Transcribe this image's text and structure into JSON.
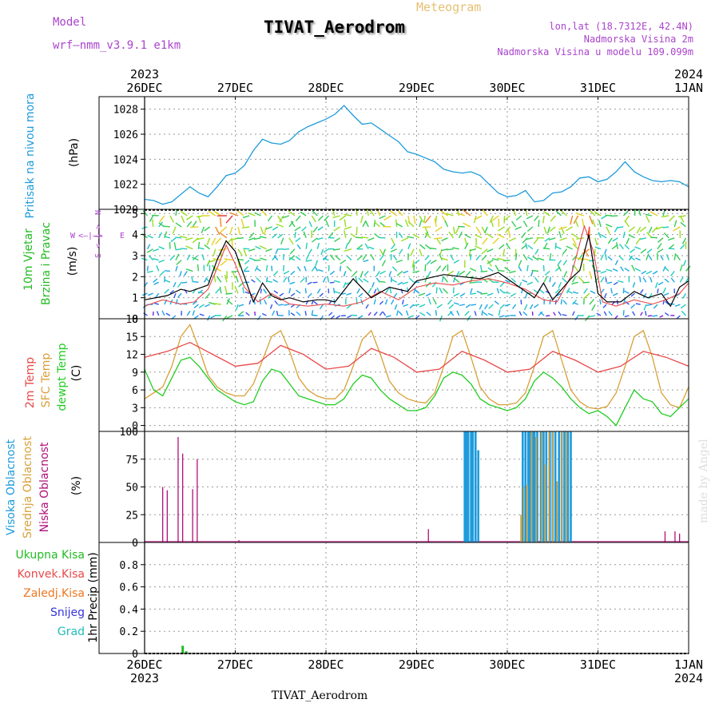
{
  "header": {
    "model_label": "Model",
    "model_name": "wrf—nmm_v3.9.1  e1km",
    "product": "Meteogram",
    "station": "TIVAT_Aerodrom",
    "lonlat": "lon,lat (18.7312E, 42.4N)",
    "elevation": "Nadmorska Visina 2m",
    "model_elevation": "Nadmorska Visina u modelu 109.099m",
    "footer_station": "TIVAT_Aerodrom",
    "credit": "made by Angel"
  },
  "colors": {
    "pressure": "#1e9bdc",
    "wind_label": "#22bb22",
    "temp2m": "#e84848",
    "sfc_temp": "#d8a038",
    "dewpt": "#22cc22",
    "cloud_high": "#1e9bdc",
    "cloud_mid": "#d8a038",
    "cloud_low": "#b0107a",
    "precip_total": "#22bb22",
    "precip_conv": "#e84848",
    "precip_frozen": "#ee7722",
    "precip_snow": "#3333dd",
    "precip_grad": "#22bbbb",
    "compass": "#aa44cc",
    "model_title": "#aa44cc",
    "product_title": "#e6c072"
  },
  "time_axis": {
    "top_year_left": "2023",
    "top_year_right": "2024",
    "bottom_year_left": "2023",
    "bottom_year_right": "2024",
    "ticks": [
      "26DEC",
      "27DEC",
      "28DEC",
      "29DEC",
      "30DEC",
      "31DEC",
      "1JAN"
    ]
  },
  "chart_data": [
    {
      "panel": "pressure",
      "type": "line",
      "ylabel": "Pritisak na nivou mora",
      "unit": "(hPa)",
      "ylim": [
        1020,
        1029
      ],
      "yticks": [
        1020,
        1022,
        1024,
        1026,
        1028
      ],
      "grid": true,
      "series": [
        {
          "x": [
            0,
            0.1,
            0.2,
            0.3,
            0.4,
            0.5,
            0.6,
            0.7,
            0.8,
            0.9,
            1,
            1.1,
            1.2,
            1.3,
            1.4,
            1.5,
            1.6,
            1.7,
            1.8,
            1.9,
            2,
            2.1,
            2.2,
            2.3,
            2.4,
            2.5,
            2.6,
            2.7,
            2.8,
            2.9,
            3,
            3.1,
            3.2,
            3.3,
            3.4,
            3.5,
            3.6,
            3.7,
            3.8,
            3.9,
            4,
            4.1,
            4.2,
            4.3,
            4.4,
            4.5,
            4.6,
            4.7,
            4.8,
            4.9,
            5,
            5.1,
            5.2,
            5.3,
            5.4,
            5.5,
            5.6,
            5.7,
            5.8,
            5.9,
            6
          ],
          "values": [
            1020.8,
            1020.7,
            1020.4,
            1020.6,
            1021.2,
            1021.8,
            1021.3,
            1021.0,
            1021.8,
            1022.7,
            1022.9,
            1023.5,
            1024.7,
            1025.6,
            1025.3,
            1025.2,
            1025.5,
            1026.2,
            1026.6,
            1026.9,
            1027.2,
            1027.6,
            1028.3,
            1027.5,
            1026.8,
            1026.9,
            1026.4,
            1025.9,
            1025.4,
            1024.6,
            1024.4,
            1024.1,
            1023.8,
            1023.2,
            1023.0,
            1022.9,
            1023.0,
            1022.7,
            1022.0,
            1021.3,
            1021.0,
            1021.1,
            1021.5,
            1020.6,
            1020.7,
            1021.3,
            1021.4,
            1021.8,
            1022.5,
            1022.6,
            1022.2,
            1022.4,
            1023.0,
            1023.8,
            1023.0,
            1022.6,
            1022.3,
            1022.2,
            1022.3,
            1022.2,
            1021.8
          ]
        }
      ]
    },
    {
      "panel": "wind",
      "type": "line",
      "ylabel_line1": "10m Vjetar",
      "ylabel_line2": "Brzina i Pravac",
      "unit": "(m/s)",
      "compass": {
        "n": "N",
        "s": "S",
        "w": "W",
        "e": "E"
      },
      "ylim": [
        0,
        5.2
      ],
      "yticks": [
        0,
        1,
        2,
        3,
        4,
        5
      ],
      "grid": true,
      "series": [
        {
          "name": "wind speed",
          "x": [
            0,
            0.25,
            0.4,
            0.5,
            0.7,
            0.8,
            0.9,
            1.0,
            1.1,
            1.2,
            1.3,
            1.4,
            1.5,
            1.6,
            1.75,
            1.9,
            2.0,
            2.1,
            2.3,
            2.5,
            2.7,
            2.9,
            3.0,
            3.1,
            3.3,
            3.5,
            3.7,
            3.9,
            4.1,
            4.3,
            4.4,
            4.5,
            4.7,
            4.8,
            4.9,
            5.0,
            5.1,
            5.25,
            5.4,
            5.55,
            5.7,
            5.8,
            5.9,
            6.0
          ],
          "values": [
            0.9,
            1.1,
            1.4,
            1.3,
            1.6,
            2.8,
            3.7,
            3.2,
            2.0,
            0.8,
            1.7,
            1.1,
            0.9,
            1.0,
            0.8,
            0.9,
            0.9,
            0.8,
            1.9,
            1.0,
            1.5,
            1.3,
            1.8,
            1.9,
            2.1,
            2.0,
            1.9,
            2.2,
            1.6,
            1.0,
            1.7,
            0.9,
            1.9,
            2.3,
            4.0,
            1.2,
            0.8,
            0.8,
            1.3,
            1.0,
            1.2,
            0.6,
            1.5,
            1.8
          ]
        },
        {
          "name": "gust",
          "x": [
            0,
            0.2,
            0.4,
            0.55,
            0.7,
            0.8,
            0.9,
            1.0,
            1.1,
            1.25,
            1.4,
            1.6,
            1.8,
            2.0,
            2.2,
            2.4,
            2.6,
            2.8,
            3.0,
            3.2,
            3.4,
            3.6,
            3.8,
            4.0,
            4.2,
            4.4,
            4.55,
            4.7,
            4.85,
            4.95,
            5.05,
            5.2,
            5.4,
            5.6,
            5.75,
            5.9,
            6.0
          ],
          "values": [
            0.6,
            0.9,
            0.7,
            0.8,
            1.4,
            2.4,
            3.5,
            2.6,
            1.5,
            0.8,
            1.2,
            0.7,
            0.6,
            0.7,
            0.6,
            0.8,
            1.3,
            0.9,
            1.5,
            1.7,
            1.6,
            1.8,
            1.9,
            1.7,
            1.4,
            0.9,
            0.8,
            2.0,
            4.4,
            3.2,
            0.8,
            0.6,
            0.9,
            0.7,
            0.9,
            1.2,
            1.7
          ]
        }
      ]
    },
    {
      "panel": "temperature",
      "type": "line",
      "ylabel_2m": "2m Temp",
      "ylabel_sfc": "SFC Temp",
      "ylabel_dewpt": "dewpt Temp",
      "unit": "(C)",
      "ylim": [
        -1,
        18
      ],
      "yticks": [
        0,
        3,
        6,
        9,
        12,
        15,
        18
      ],
      "grid": true,
      "series": [
        {
          "name": "2m Temp",
          "x": [
            0,
            0.25,
            0.5,
            0.75,
            1.0,
            1.25,
            1.5,
            1.75,
            2.0,
            2.25,
            2.5,
            2.75,
            3.0,
            3.25,
            3.5,
            3.75,
            4.0,
            4.25,
            4.5,
            4.75,
            5.0,
            5.25,
            5.5,
            5.75,
            6.0
          ],
          "values": [
            11.5,
            12.5,
            14.0,
            12.0,
            10.0,
            10.5,
            13.5,
            12.0,
            9.5,
            10.0,
            13.0,
            11.5,
            9.0,
            9.5,
            12.5,
            11.0,
            9.0,
            9.5,
            12.5,
            11.0,
            9.0,
            10.0,
            12.5,
            11.5,
            10.0
          ]
        },
        {
          "name": "SFC Temp",
          "x": [
            0,
            0.1,
            0.2,
            0.3,
            0.4,
            0.5,
            0.6,
            0.7,
            0.8,
            0.9,
            1.0,
            1.1,
            1.2,
            1.3,
            1.4,
            1.5,
            1.6,
            1.7,
            1.8,
            1.9,
            2.0,
            2.1,
            2.2,
            2.3,
            2.4,
            2.5,
            2.6,
            2.7,
            2.8,
            2.9,
            3.0,
            3.1,
            3.2,
            3.3,
            3.4,
            3.5,
            3.6,
            3.7,
            3.8,
            3.9,
            4.0,
            4.1,
            4.2,
            4.3,
            4.4,
            4.5,
            4.6,
            4.7,
            4.8,
            4.9,
            5.0,
            5.1,
            5.2,
            5.3,
            5.4,
            5.5,
            5.6,
            5.7,
            5.8,
            5.9,
            6.0
          ],
          "values": [
            4.5,
            5.5,
            6.5,
            10.0,
            15.0,
            17.0,
            13.0,
            8.5,
            6.5,
            5.5,
            5.0,
            5.0,
            7.0,
            11.0,
            15.0,
            16.0,
            12.5,
            8.0,
            6.0,
            5.0,
            4.5,
            4.5,
            6.0,
            10.0,
            14.5,
            16.0,
            12.0,
            7.5,
            5.5,
            4.5,
            4.0,
            3.8,
            5.5,
            10.0,
            15.0,
            16.0,
            11.5,
            6.5,
            4.5,
            3.5,
            3.5,
            3.8,
            5.5,
            10.0,
            15.0,
            16.0,
            11.0,
            6.0,
            4.0,
            3.0,
            2.8,
            3.2,
            5.5,
            10.0,
            15.0,
            16.0,
            11.5,
            5.5,
            3.5,
            3.0,
            6.5
          ]
        },
        {
          "name": "dewpt Temp",
          "x": [
            0,
            0.1,
            0.2,
            0.3,
            0.4,
            0.5,
            0.6,
            0.7,
            0.8,
            0.9,
            1.0,
            1.1,
            1.2,
            1.3,
            1.4,
            1.5,
            1.6,
            1.7,
            1.8,
            1.9,
            2.0,
            2.1,
            2.2,
            2.3,
            2.4,
            2.5,
            2.6,
            2.7,
            2.8,
            2.9,
            3.0,
            3.1,
            3.2,
            3.3,
            3.4,
            3.5,
            3.6,
            3.7,
            3.8,
            3.9,
            4.0,
            4.1,
            4.2,
            4.3,
            4.4,
            4.5,
            4.6,
            4.7,
            4.8,
            4.9,
            5.0,
            5.1,
            5.2,
            5.3,
            5.4,
            5.5,
            5.6,
            5.7,
            5.8,
            5.9,
            6.0
          ],
          "values": [
            9.5,
            6.0,
            5.0,
            8.0,
            11.0,
            11.5,
            10.0,
            8.0,
            6.0,
            5.0,
            4.0,
            3.5,
            4.0,
            7.5,
            9.5,
            9.0,
            7.0,
            5.0,
            4.5,
            4.0,
            3.5,
            3.5,
            4.5,
            7.0,
            8.5,
            8.0,
            6.0,
            4.5,
            3.5,
            2.5,
            2.5,
            3.0,
            5.0,
            8.0,
            9.0,
            8.5,
            7.0,
            4.5,
            3.5,
            3.0,
            2.5,
            3.0,
            4.5,
            7.5,
            9.0,
            8.0,
            6.5,
            4.5,
            3.0,
            2.0,
            2.5,
            1.5,
            0.0,
            3.0,
            6.0,
            4.5,
            4.0,
            2.0,
            1.5,
            3.0,
            4.5
          ]
        }
      ]
    },
    {
      "panel": "cloud",
      "type": "bar",
      "ylabel_high": "Visoka Oblacnost",
      "ylabel_mid": "Srednja Oblacnost",
      "ylabel_low": "Niska Oblacnost",
      "unit": "(%)",
      "ylim": [
        0,
        100
      ],
      "yticks": [
        0,
        25,
        50,
        75,
        100
      ],
      "grid": true,
      "series": [
        {
          "name": "Niska Oblacnost",
          "x": [
            0.2,
            0.25,
            0.37,
            0.42,
            0.53,
            0.58,
            1.04,
            3.13,
            5.74,
            5.85,
            5.9
          ],
          "values": [
            50,
            47,
            95,
            80,
            48,
            75,
            2,
            12,
            10,
            10,
            8
          ]
        },
        {
          "name": "Visoka Oblacnost",
          "x": [
            3.53,
            3.55,
            3.57,
            3.6,
            3.62,
            3.65,
            3.68,
            3.7,
            4.17,
            4.2,
            4.23,
            4.25,
            4.28,
            4.3,
            4.33,
            4.37,
            4.4,
            4.43,
            4.47,
            4.5,
            4.53,
            4.57,
            4.6,
            4.63,
            4.67,
            4.7
          ],
          "values": [
            100,
            100,
            100,
            100,
            100,
            100,
            83,
            0,
            100,
            100,
            100,
            100,
            100,
            100,
            100,
            100,
            100,
            100,
            100,
            100,
            100,
            100,
            100,
            100,
            100,
            100
          ]
        },
        {
          "name": "Srednja Oblacnost",
          "x": [
            4.15,
            4.18,
            4.22,
            4.27,
            4.32,
            4.38,
            4.42,
            4.46,
            4.5,
            4.55,
            4.6,
            4.65
          ],
          "values": [
            25,
            50,
            52,
            100,
            95,
            100,
            70,
            100,
            100,
            55,
            100,
            100
          ]
        }
      ]
    },
    {
      "panel": "precip",
      "type": "bar",
      "ylabel": "1hr Precip (mm)",
      "ylim": [
        0,
        1.0
      ],
      "yticks": [
        0,
        0.2,
        0.4,
        0.6,
        0.8
      ],
      "grid": true,
      "legend": [
        "Ukupna Kisa",
        "Konvek.Kisa",
        "Zaledj.Kisa",
        "Snijeg",
        "Grad"
      ],
      "series": [
        {
          "name": "Ukupna Kisa",
          "x": [
            0.42,
            0.46
          ],
          "values": [
            0.07,
            0.02
          ]
        }
      ]
    }
  ]
}
